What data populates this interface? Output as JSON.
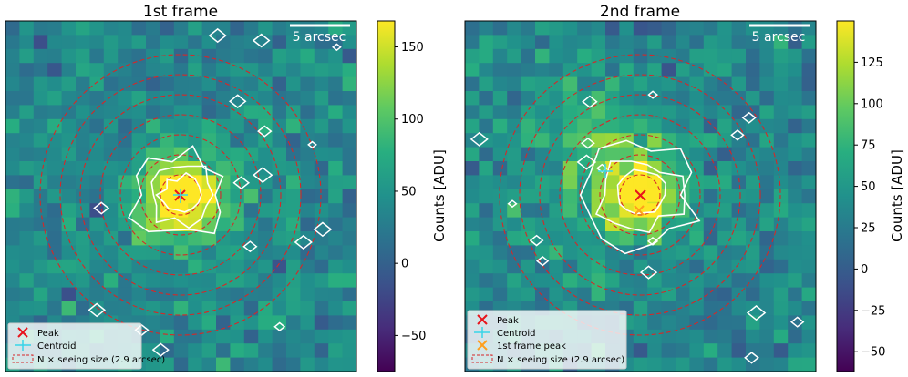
{
  "chart_data": [
    {
      "type": "heatmap",
      "title": "1st frame",
      "scale_bar_label": "5 arcsec",
      "colorbar_label": "Counts [ADU]",
      "colorbar_ticks": [
        150,
        100,
        50,
        0,
        -50
      ],
      "colorbar_range": [
        -75,
        168
      ],
      "grid_size": 25,
      "seeing_circles": 7,
      "legend": [
        "Peak",
        "Centroid",
        "N × seeing size (2.9 arcsec)"
      ],
      "peak_marker": "x",
      "centroid_marker": "+",
      "grid": false,
      "legend_position": "bottom-left",
      "colors": {
        "peak": "#e8141c",
        "centroid": "#37d5e8",
        "circle": "#d62728",
        "contour": "#ffffff"
      }
    },
    {
      "type": "heatmap",
      "title": "2nd frame",
      "scale_bar_label": "5 arcsec",
      "colorbar_label": "Counts [ADU]",
      "colorbar_ticks": [
        125,
        100,
        75,
        50,
        25,
        0,
        -25,
        -50
      ],
      "colorbar_range": [
        -62,
        150
      ],
      "grid_size": 25,
      "seeing_circles": 7,
      "legend": [
        "Peak",
        "Centroid",
        "1st frame peak",
        "N × seeing size (2.9 arcsec)"
      ],
      "peak_marker": "x",
      "centroid_marker": "+",
      "first_peak_marker": "x",
      "grid": false,
      "legend_position": "bottom-left",
      "colors": {
        "peak": "#e8141c",
        "centroid": "#37d5e8",
        "first_peak": "#ff9f1c",
        "circle": "#d62728",
        "contour": "#ffffff"
      }
    }
  ]
}
